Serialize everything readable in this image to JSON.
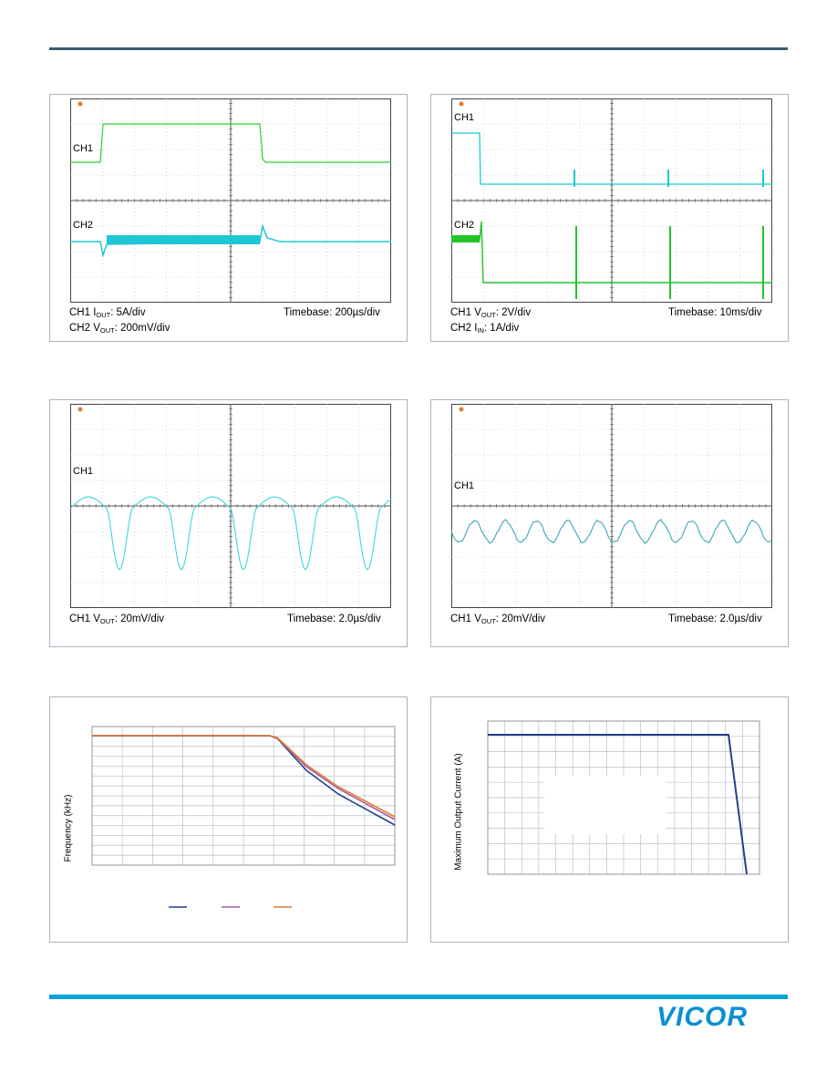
{
  "scope1": {
    "ch1_label": "CH1",
    "ch2_label": "CH2",
    "caption_ch1_pre": "CH1 I",
    "caption_ch1_sub": "OUT",
    "caption_ch1_post": ": 5A/div",
    "caption_ch2_pre": "CH2 V",
    "caption_ch2_sub": "OUT",
    "caption_ch2_post": ": 200mV/div",
    "timebase": "Timebase: 200µs/div",
    "colors": {
      "ch1": "#2fcf2f",
      "ch2": "#1fc7d4"
    }
  },
  "scope2": {
    "ch1_label": "CH1",
    "ch2_label": "CH2",
    "caption_ch1_pre": "CH1 V",
    "caption_ch1_sub": "OUT",
    "caption_ch1_post": ": 2V/div",
    "caption_ch2_pre": "CH2 I",
    "caption_ch2_sub": "IN",
    "caption_ch2_post": ": 1A/div",
    "timebase": "Timebase: 10ms/div",
    "colors": {
      "ch1": "#1fc7d4",
      "ch2": "#22c42a"
    }
  },
  "scope3": {
    "ch1_label": "CH1",
    "caption_pre": "CH1 V",
    "caption_sub": "OUT",
    "caption_post": ": 20mV/div",
    "timebase": "Timebase: 2.0µs/div",
    "colors": {
      "ch1": "#3fd6dc"
    }
  },
  "scope4": {
    "ch1_label": "CH1",
    "caption_pre": "CH1 V",
    "caption_sub": "OUT",
    "caption_post": ": 20mV/div",
    "timebase": "Timebase: 2.0µs/div",
    "colors": {
      "ch1": "#3aa6b8"
    }
  },
  "plot5": {
    "ylabel": "Frequency (kHz)",
    "colors": {
      "s1": "#263f8c",
      "s2": "#a45aa6",
      "s3": "#e07d2e"
    }
  },
  "plot6": {
    "ylabel": "Maximum Output Current (A)",
    "colors": {
      "line": "#27408b"
    }
  },
  "brand": {
    "logo_text": "VICOR",
    "color": "#0a8fd4"
  }
}
